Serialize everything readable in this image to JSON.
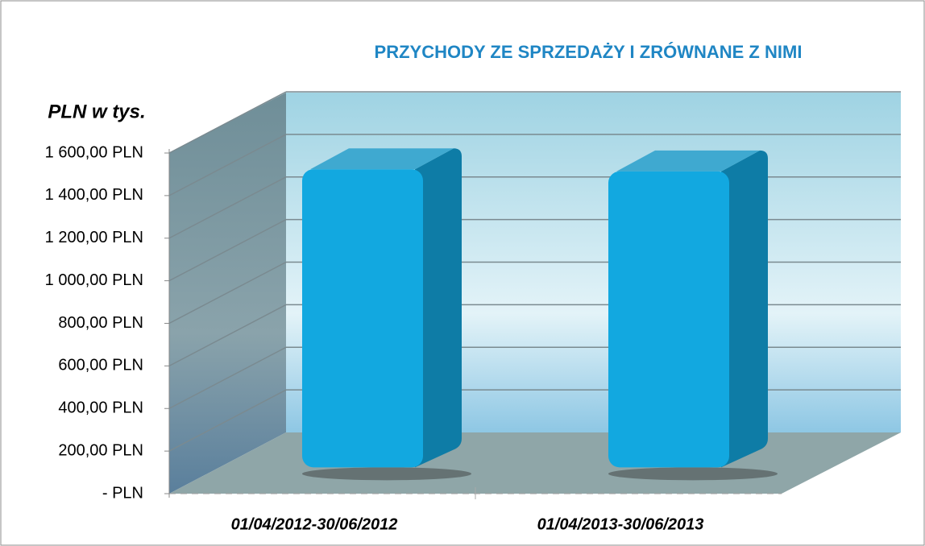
{
  "chart_data": {
    "type": "bar3d",
    "title": "PRZYCHODY ZE SPRZEDAŻY I ZRÓWNANE Z NIMI",
    "y_label": "PLN w tys.",
    "categories": [
      "01/04/2012-30/06/2012",
      "01/04/2013-30/06/2013"
    ],
    "values": [
      1400,
      1390
    ],
    "color": "#12a8e0",
    "ylim": [
      0,
      1600
    ],
    "yticks": [
      {
        "value": 0,
        "label": "-   PLN"
      },
      {
        "value": 200,
        "label": "200,00 PLN"
      },
      {
        "value": 400,
        "label": "400,00 PLN"
      },
      {
        "value": 600,
        "label": "600,00 PLN"
      },
      {
        "value": 800,
        "label": "800,00 PLN"
      },
      {
        "value": 1000,
        "label": "1 000,00 PLN"
      },
      {
        "value": 1200,
        "label": "1 200,00 PLN"
      },
      {
        "value": 1400,
        "label": "1 400,00 PLN"
      },
      {
        "value": 1600,
        "label": "1 600,00 PLN"
      }
    ],
    "grid": true
  }
}
